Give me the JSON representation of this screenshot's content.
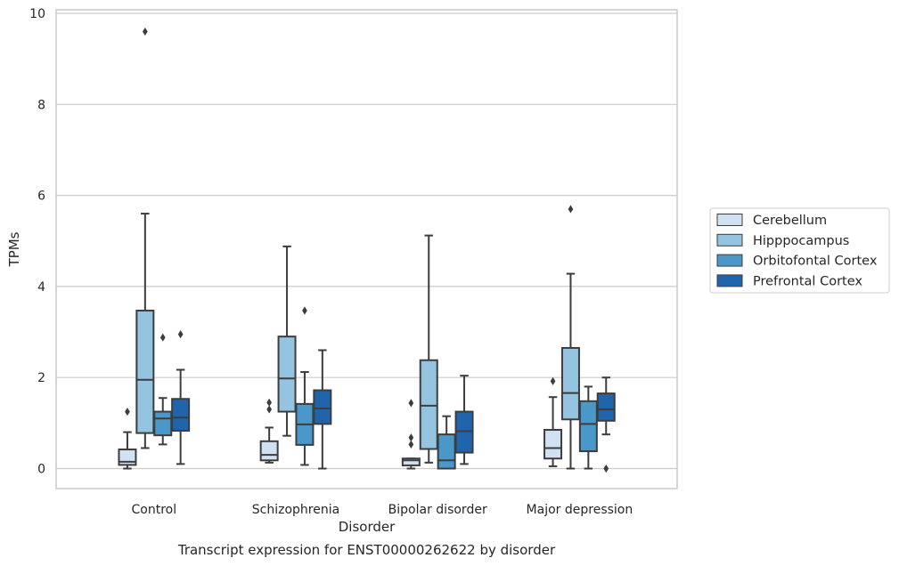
{
  "chart_data": {
    "type": "box",
    "title": "Transcript expression for ENST00000262622 by disorder",
    "xlabel": "Disorder",
    "ylabel": "TPMs",
    "ylim": [
      -0.45,
      10.1
    ],
    "yticks": [
      0,
      2,
      4,
      6,
      8,
      10
    ],
    "grid": "horizontal",
    "legend_position": "right",
    "categories": [
      "Control",
      "Schizophrenia",
      "Bipolar disorder",
      "Major depression"
    ],
    "series": [
      {
        "name": "Cerebellum",
        "color": "#d0e1f2",
        "boxes": [
          {
            "whislo": 0.0,
            "q1": 0.08,
            "med": 0.15,
            "q3": 0.42,
            "whishi": 0.8,
            "fliers": [
              1.25
            ]
          },
          {
            "whislo": 0.13,
            "q1": 0.18,
            "med": 0.3,
            "q3": 0.6,
            "whishi": 0.9,
            "fliers": [
              1.3,
              1.45
            ]
          },
          {
            "whislo": 0.0,
            "q1": 0.07,
            "med": 0.18,
            "q3": 0.22,
            "whishi": 0.22,
            "fliers": [
              0.53,
              0.68,
              1.44
            ]
          },
          {
            "whislo": 0.05,
            "q1": 0.22,
            "med": 0.45,
            "q3": 0.85,
            "whishi": 1.57,
            "fliers": [
              1.92
            ]
          }
        ]
      },
      {
        "name": "Hipppocampus",
        "color": "#94c4df",
        "boxes": [
          {
            "whislo": 0.45,
            "q1": 0.78,
            "med": 1.95,
            "q3": 3.47,
            "whishi": 5.6,
            "fliers": [
              9.6
            ]
          },
          {
            "whislo": 0.72,
            "q1": 1.25,
            "med": 1.98,
            "q3": 2.9,
            "whishi": 4.88,
            "fliers": []
          },
          {
            "whislo": 0.13,
            "q1": 0.43,
            "med": 1.38,
            "q3": 2.38,
            "whishi": 5.12,
            "fliers": []
          },
          {
            "whislo": 0.0,
            "q1": 1.08,
            "med": 1.66,
            "q3": 2.65,
            "whishi": 4.28,
            "fliers": [
              5.7
            ]
          }
        ]
      },
      {
        "name": "Orbitofontal Cortex",
        "color": "#4a98c9",
        "boxes": [
          {
            "whislo": 0.53,
            "q1": 0.73,
            "med": 1.1,
            "q3": 1.25,
            "whishi": 1.55,
            "fliers": [
              2.88
            ]
          },
          {
            "whislo": 0.08,
            "q1": 0.52,
            "med": 0.97,
            "q3": 1.42,
            "whishi": 2.12,
            "fliers": [
              3.47
            ]
          },
          {
            "whislo": 0.0,
            "q1": 0.0,
            "med": 0.18,
            "q3": 0.75,
            "whishi": 1.15,
            "fliers": []
          },
          {
            "whislo": 0.0,
            "q1": 0.38,
            "med": 0.98,
            "q3": 1.48,
            "whishi": 1.8,
            "fliers": []
          }
        ]
      },
      {
        "name": "Prefrontal Cortex",
        "color": "#2064ab",
        "boxes": [
          {
            "whislo": 0.1,
            "q1": 0.83,
            "med": 1.12,
            "q3": 1.53,
            "whishi": 2.17,
            "fliers": [
              2.95
            ]
          },
          {
            "whislo": 0.0,
            "q1": 0.98,
            "med": 1.32,
            "q3": 1.72,
            "whishi": 2.6,
            "fliers": []
          },
          {
            "whislo": 0.1,
            "q1": 0.35,
            "med": 0.82,
            "q3": 1.25,
            "whishi": 2.04,
            "fliers": []
          },
          {
            "whislo": 0.75,
            "q1": 1.05,
            "med": 1.3,
            "q3": 1.65,
            "whishi": 2.0,
            "fliers": [
              0.0
            ]
          }
        ]
      }
    ]
  }
}
